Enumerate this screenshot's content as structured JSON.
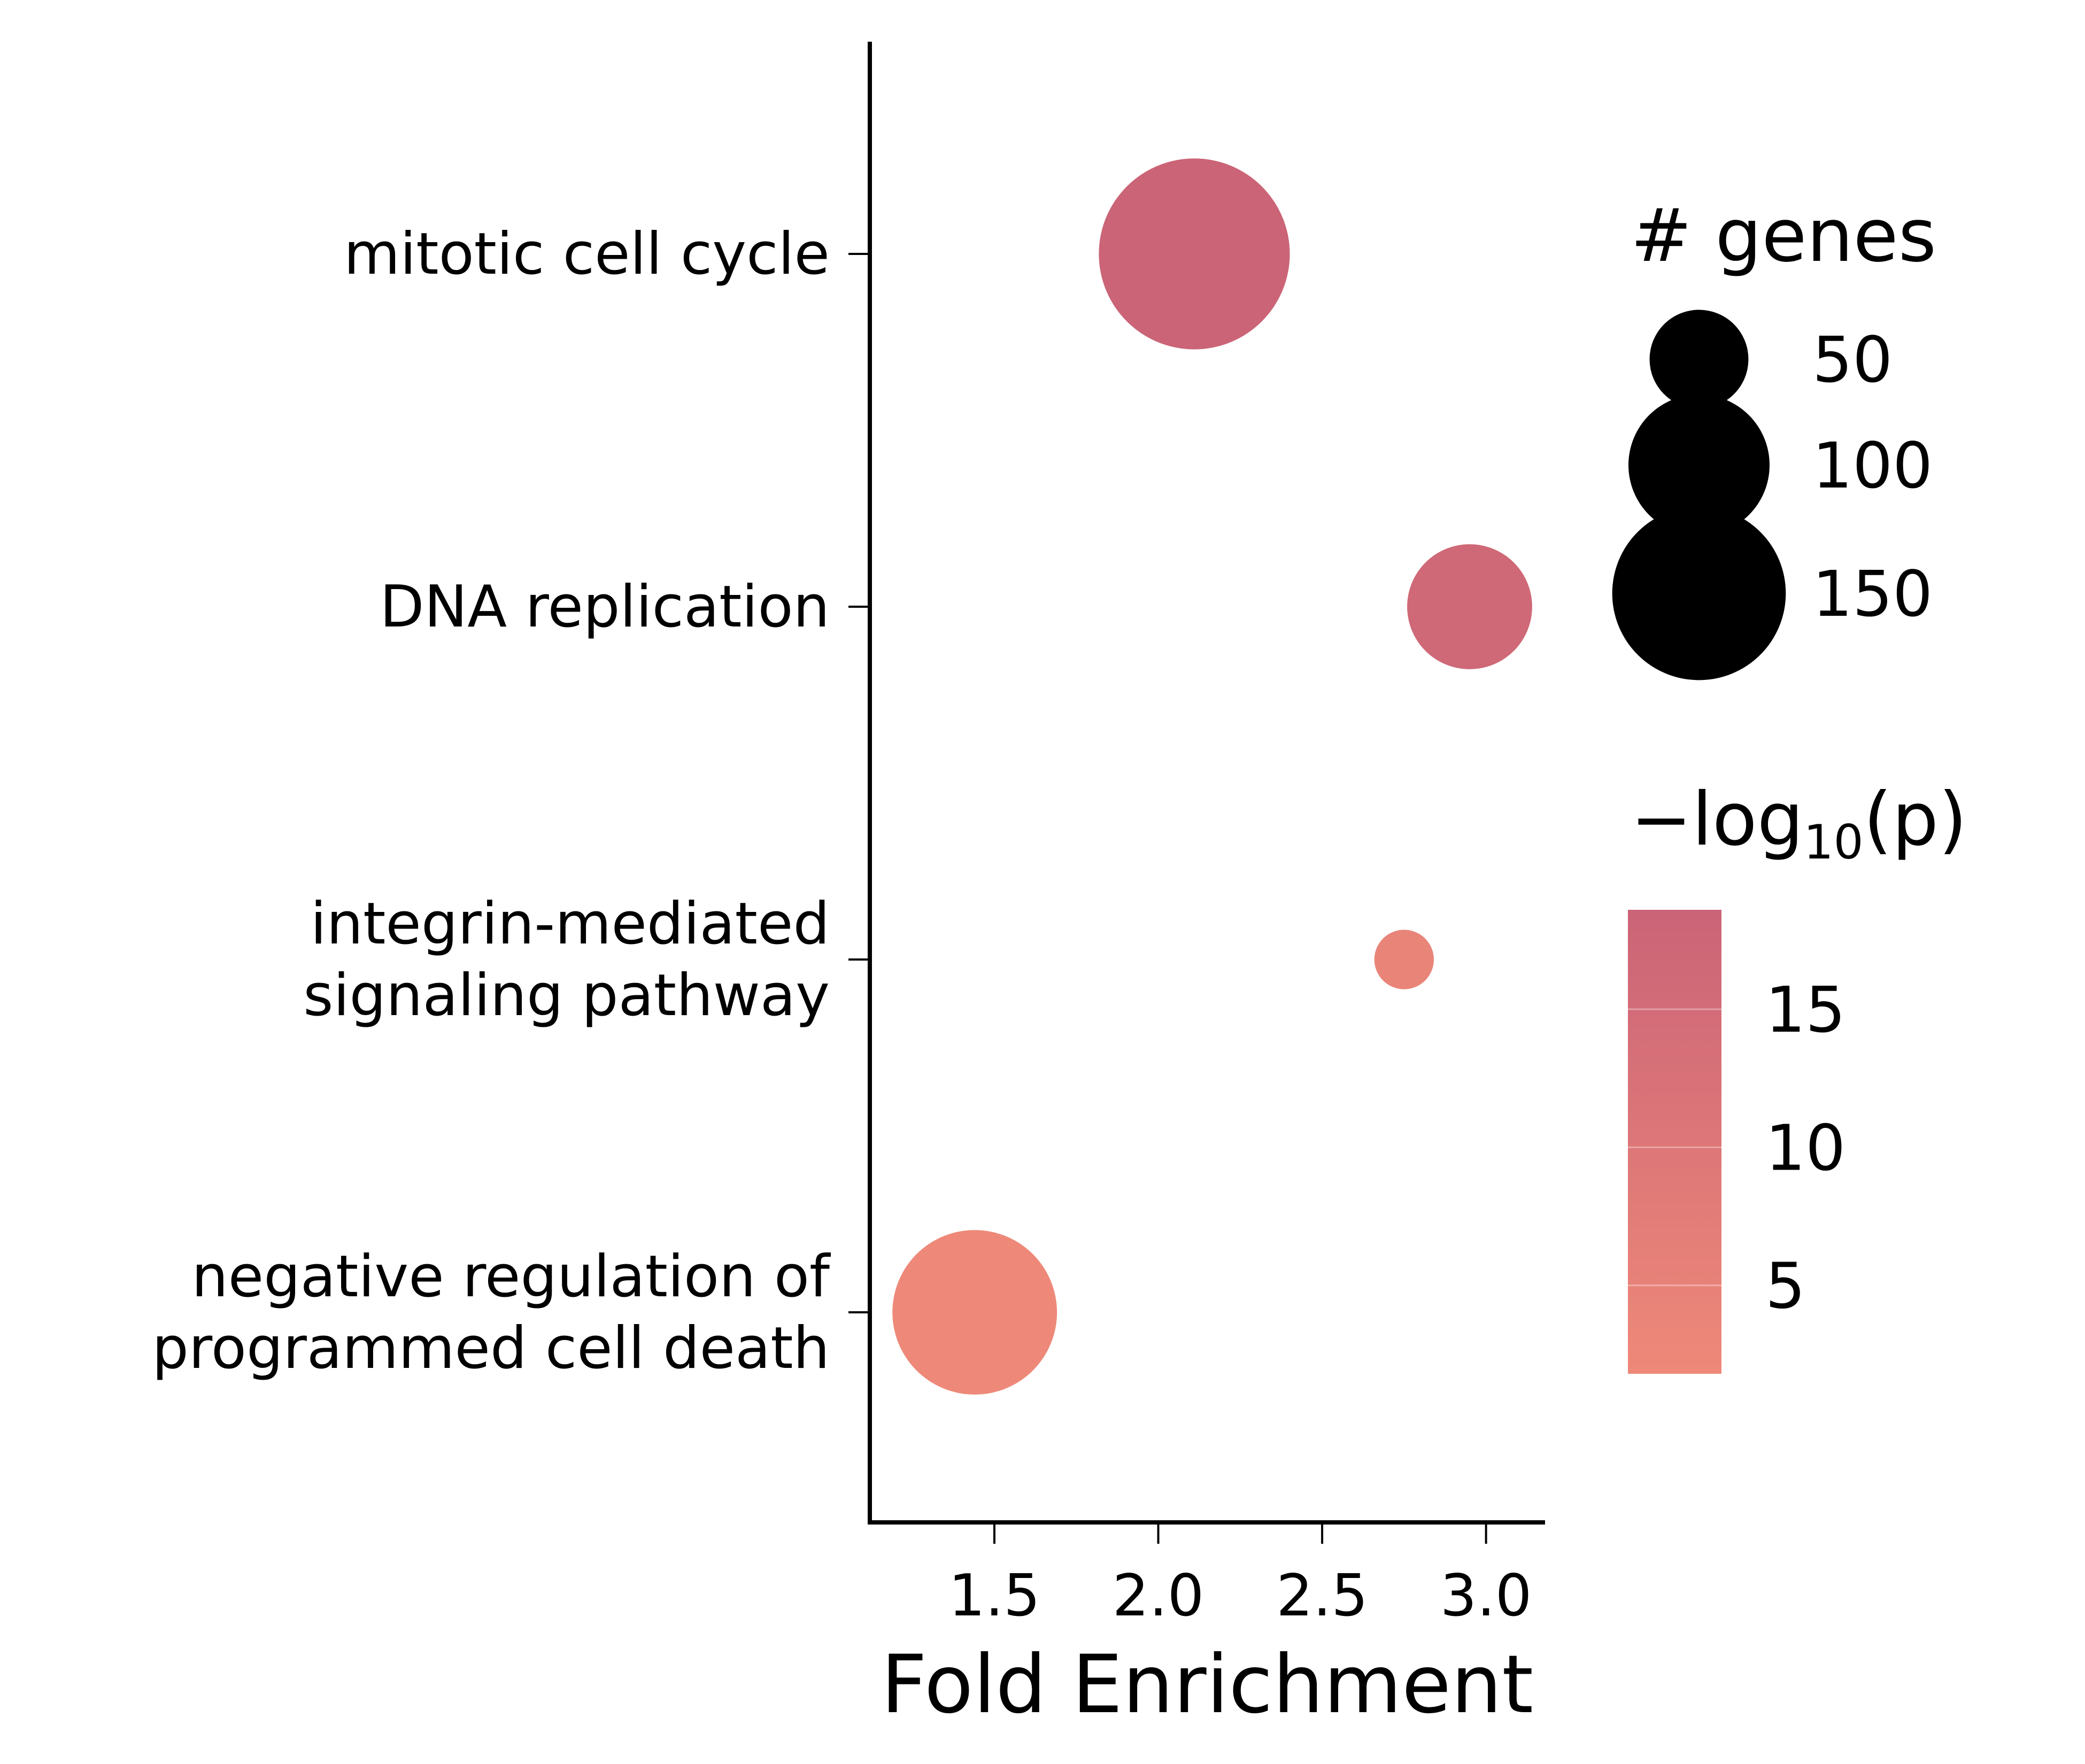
{
  "chart_data": {
    "type": "scatter",
    "xlabel": "Fold Enrichment",
    "x_ticks": [
      "1.5",
      "2.0",
      "2.5",
      "3.0"
    ],
    "xlim": [
      1.12,
      3.18
    ],
    "categories": [
      {
        "lines": [
          "mitotic cell cycle"
        ]
      },
      {
        "lines": [
          "DNA replication"
        ]
      },
      {
        "lines": [
          "integrin-mediated",
          "signaling pathway"
        ]
      },
      {
        "lines": [
          "negative regulation of",
          "programmed cell death"
        ]
      }
    ],
    "points": [
      {
        "category": "mitotic cell cycle",
        "fold_enrichment": 2.11,
        "genes": 175,
        "neg_log10_p": 18.5
      },
      {
        "category": "DNA replication",
        "fold_enrichment": 2.95,
        "genes": 75,
        "neg_log10_p": 16.5
      },
      {
        "category": "integrin-mediated signaling pathway",
        "fold_enrichment": 2.75,
        "genes": 17,
        "neg_log10_p": 4.0
      },
      {
        "category": "negative regulation of programmed cell death",
        "fold_enrichment": 1.44,
        "genes": 130,
        "neg_log10_p": 2.0
      }
    ],
    "size_legend": {
      "title": "# genes",
      "entries": [
        {
          "label": "50",
          "value": 50
        },
        {
          "label": "100",
          "value": 100
        },
        {
          "label": "150",
          "value": 150
        }
      ]
    },
    "color_legend": {
      "title_prefix": "−log",
      "title_subscript": "10",
      "title_suffix": "(p)",
      "ticks": [
        {
          "label": "15",
          "value": 15
        },
        {
          "label": "10",
          "value": 10
        },
        {
          "label": "5",
          "value": 5
        }
      ],
      "range": [
        1.8,
        18.6
      ],
      "colors": {
        "low": "#ee8979",
        "high": "#cb6477"
      }
    },
    "grid": false
  }
}
